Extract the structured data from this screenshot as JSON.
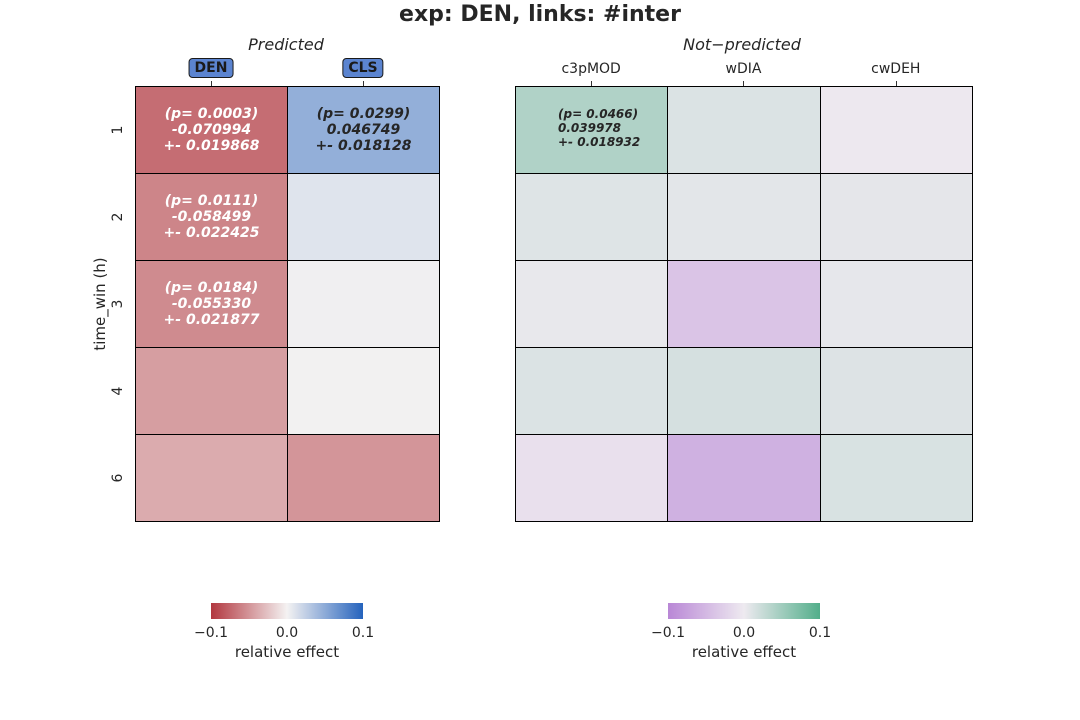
{
  "figure": {
    "title": "exp: DEN, links: #inter"
  },
  "chart_data": [
    {
      "type": "heatmap",
      "panel_title": "Predicted",
      "columns": [
        "DEN",
        "CLS"
      ],
      "columns_highlighted": true,
      "rows": [
        "1",
        "2",
        "3",
        "4",
        "6"
      ],
      "ylabel": "time_win (h)",
      "values": [
        [
          -0.070994,
          0.046749
        ],
        [
          -0.058499,
          0.01
        ],
        [
          -0.05533,
          0.002
        ],
        [
          -0.045,
          0.001
        ],
        [
          -0.038,
          -0.05
        ]
      ],
      "annotations": [
        [
          [
            "(p= 0.0003)",
            "-0.070994",
            "+- 0.019868"
          ],
          [
            "(p= 0.0299)",
            "0.046749",
            "+- 0.018128"
          ]
        ],
        [
          [
            "(p= 0.0111)",
            "-0.058499",
            "+- 0.022425"
          ],
          null
        ],
        [
          [
            "(p= 0.0184)",
            "-0.055330",
            "+- 0.021877"
          ],
          null
        ],
        [
          null,
          null
        ],
        [
          null,
          null
        ]
      ],
      "annotation_colors": [
        [
          "#ffffff",
          "#262626"
        ],
        [
          "#ffffff",
          null
        ],
        [
          "#ffffff",
          null
        ],
        [
          null,
          null
        ],
        [
          null,
          null
        ]
      ],
      "colormap": {
        "low": "#b2373f",
        "mid": "#f4f2f2",
        "high": "#2563bd"
      },
      "colorbar": {
        "ticks": [
          "−0.1",
          "0.0",
          "0.1"
        ],
        "label": "relative effect",
        "vmin": -0.1,
        "vmax": 0.1
      },
      "grid": true
    },
    {
      "type": "heatmap",
      "panel_title": "Not−predicted",
      "columns": [
        "c3pMOD",
        "wDIA",
        "cwDEH"
      ],
      "columns_highlighted": false,
      "rows": [
        "1",
        "2",
        "3",
        "4",
        "6"
      ],
      "values": [
        [
          0.039978,
          0.012,
          -0.002
        ],
        [
          0.01,
          0.007,
          0.006
        ],
        [
          0.004,
          -0.038,
          0.005
        ],
        [
          0.012,
          0.016,
          0.011
        ],
        [
          -0.01,
          -0.058,
          0.014
        ]
      ],
      "annotations": [
        [
          [
            "(p= 0.0466)",
            "0.039978",
            "+- 0.018932"
          ],
          null,
          null
        ],
        [
          null,
          null,
          null
        ],
        [
          null,
          null,
          null
        ],
        [
          null,
          null,
          null
        ],
        [
          null,
          null,
          null
        ]
      ],
      "annotation_colors": [
        [
          "#262626",
          null,
          null
        ],
        [
          null,
          null,
          null
        ],
        [
          null,
          null,
          null
        ],
        [
          null,
          null,
          null
        ],
        [
          null,
          null,
          null
        ]
      ],
      "colormap": {
        "low": "#b987d6",
        "mid": "#eeeaf0",
        "high": "#52ae8a"
      },
      "colorbar": {
        "ticks": [
          "−0.1",
          "0.0",
          "0.1"
        ],
        "label": "relative effect",
        "vmin": -0.1,
        "vmax": 0.1
      },
      "grid": true
    }
  ]
}
